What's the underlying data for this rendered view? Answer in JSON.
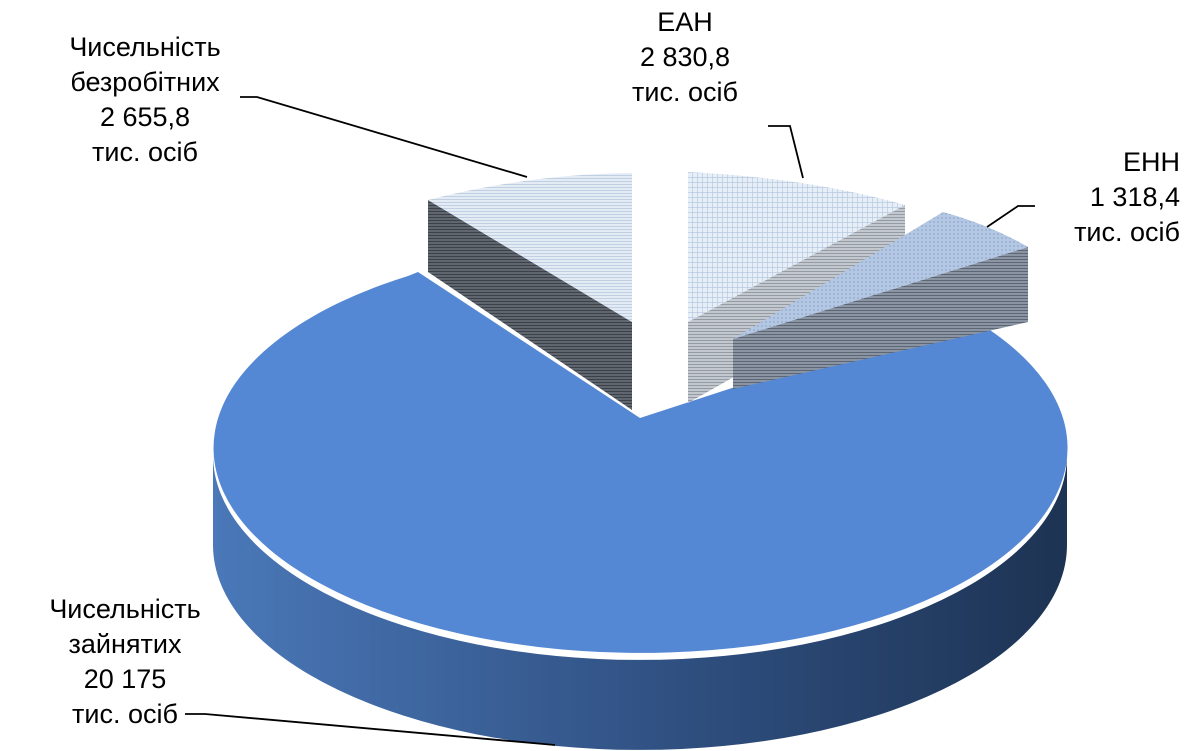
{
  "chart_data": {
    "type": "pie",
    "variant": "3d-exploded",
    "unit": "тис. осіб",
    "slices": [
      {
        "name": "Чисельність зайнятих",
        "value": 20175,
        "label_lines": [
          "Чисельність",
          "зайнятих",
          "20 175",
          "тис. осіб"
        ],
        "color": "#5588d4"
      },
      {
        "name": "Чисельність безробітних",
        "value": 2655.8,
        "label_lines": [
          "Чисельність",
          "безробітних",
          "2  655,8",
          "тис. осіб"
        ],
        "color": "#d9e3f0"
      },
      {
        "name": "ЕАН",
        "value": 2830.8,
        "label_lines": [
          "ЕАН",
          "2 830,8",
          "тис. осіб"
        ],
        "color": "#dde7f2"
      },
      {
        "name": "ЕНН",
        "value": 1318.4,
        "label_lines": [
          "ЕНН",
          "1 318,4",
          "тис. осіб"
        ],
        "color": "#b3c6e2"
      }
    ],
    "title": "",
    "legend": "none"
  }
}
